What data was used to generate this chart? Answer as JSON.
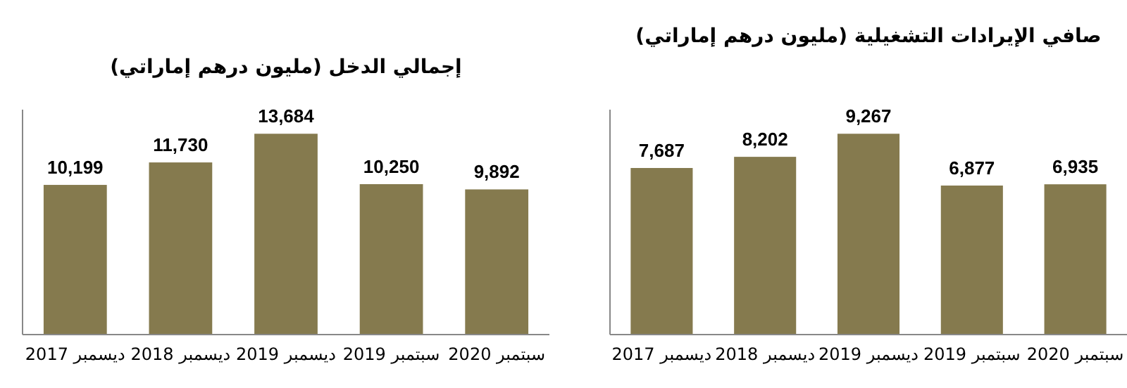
{
  "chart_data": [
    {
      "type": "bar",
      "title": "إجمالي الدخل (مليون درهم إماراتي)",
      "categories": [
        "ديسمبر 2017",
        "ديسمبر 2018",
        "ديسمبر 2019",
        "سبتمبر 2019",
        "سبتمبر 2020"
      ],
      "values": [
        10199,
        11730,
        13684,
        10250,
        9892
      ],
      "color": "#857a4e",
      "value_labels": [
        "10,199",
        "11,730",
        "13,684",
        "10,250",
        "9,892"
      ]
    },
    {
      "type": "bar",
      "title": "صافي الإيرادات التشغيلية (مليون درهم إماراتي)",
      "categories": [
        "ديسمبر 2017",
        "ديسمبر 2018",
        "ديسمبر 2019",
        "سبتمبر 2019",
        "سبتمبر 2020"
      ],
      "values": [
        7687,
        8202,
        9267,
        6877,
        6935
      ],
      "color": "#857a4e",
      "value_labels": [
        "7,687",
        "8,202",
        "9,267",
        "6,877",
        "6,935"
      ]
    }
  ]
}
